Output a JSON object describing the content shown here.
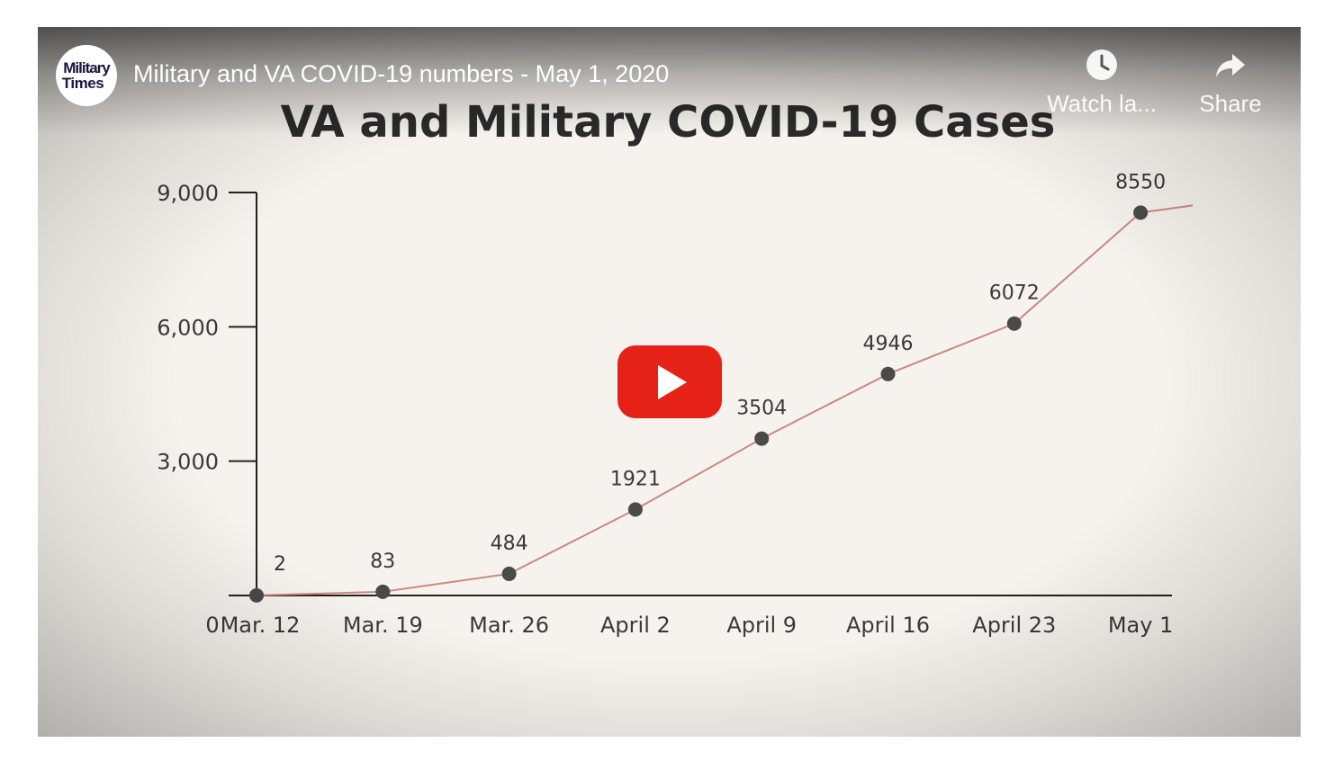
{
  "video": {
    "title": "Military and VA COVID-19 numbers - May 1, 2020",
    "channel_logo": {
      "line1": "Military",
      "line2": "Times"
    },
    "actions": [
      {
        "label": "Watch la...",
        "icon": "clock-icon"
      },
      {
        "label": "Share",
        "icon": "share-arrow-icon"
      }
    ],
    "play_button_color": "#e62117"
  },
  "chart_data": {
    "type": "line",
    "title": "VA and Military COVID-19 Cases",
    "categories": [
      "Mar. 12",
      "Mar. 19",
      "Mar. 26",
      "April 2",
      "April 9",
      "April 16",
      "April 23",
      "May 1"
    ],
    "values": [
      2,
      83,
      484,
      1921,
      3504,
      4946,
      6072,
      8550
    ],
    "data_labels": [
      "2",
      "83",
      "484",
      "1921",
      "3504",
      "4946",
      "6072",
      "8550"
    ],
    "y_ticks": [
      0,
      3000,
      6000,
      9000
    ],
    "y_tick_labels": [
      "0",
      "3,000",
      "6,000",
      "9,000"
    ],
    "ylim": [
      0,
      9000
    ],
    "line_color": "#c98a80",
    "marker_color": "#4a4a4a",
    "xlabel": "",
    "ylabel": ""
  }
}
